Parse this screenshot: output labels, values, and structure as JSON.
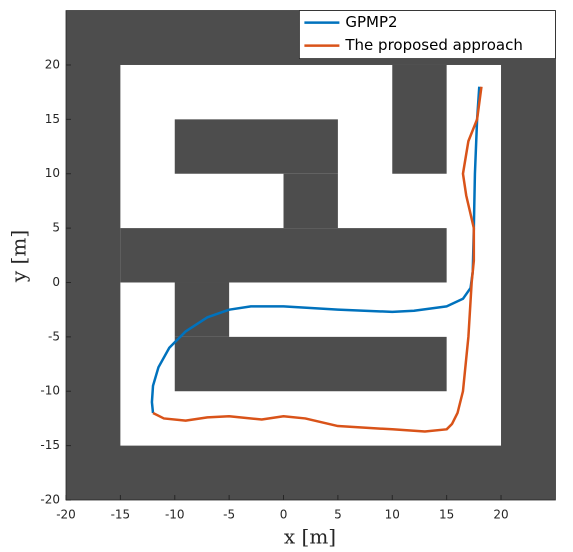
{
  "chart_data": {
    "type": "line",
    "xlabel": "x [m]",
    "ylabel": "y [m]",
    "xlim": [
      -20,
      25
    ],
    "ylim": [
      -20,
      25
    ],
    "xticks": [
      -20,
      -15,
      -10,
      -5,
      0,
      5,
      10,
      15,
      20
    ],
    "yticks": [
      -20,
      -15,
      -10,
      -5,
      0,
      5,
      10,
      15,
      20
    ],
    "legend": "upper right",
    "obstacle_color": "#4d4d4d",
    "free_space": [
      -15,
      -15,
      20,
      20
    ],
    "obstacles": [
      [
        10,
        10,
        15,
        20
      ],
      [
        -10,
        10,
        5,
        15
      ],
      [
        0,
        5,
        5,
        10
      ],
      [
        -15,
        0,
        15,
        5
      ],
      [
        -10,
        -10,
        15,
        -5
      ],
      [
        -10,
        -5,
        -5,
        0
      ]
    ],
    "series": [
      {
        "name": "GPMP2",
        "color": "#0072bd",
        "x": [
          18,
          17.8,
          17.6,
          17.5,
          17.4,
          17.2,
          16.5,
          15,
          12,
          10,
          5,
          0,
          -3,
          -5,
          -7,
          -9,
          -10.5,
          -11.5,
          -12,
          -12.1,
          -12
        ],
        "values": [
          18,
          15,
          10,
          5,
          1,
          -0.5,
          -1.5,
          -2.2,
          -2.6,
          -2.7,
          -2.5,
          -2.2,
          -2.2,
          -2.5,
          -3.2,
          -4.5,
          -6,
          -7.8,
          -9.5,
          -11,
          -12
        ]
      },
      {
        "name": "The proposed approach",
        "color": "#d95319",
        "x": [
          18.2,
          17.8,
          17,
          16.5,
          16.8,
          17.5,
          17.5,
          17.3,
          17,
          16.5,
          16,
          15.5,
          15,
          13,
          10,
          5,
          2,
          0,
          -2,
          -5,
          -7,
          -9,
          -11,
          -12
        ],
        "values": [
          18,
          15,
          13,
          10,
          8,
          5,
          2,
          0,
          -5,
          -10,
          -12,
          -13,
          -13.5,
          -13.7,
          -13.5,
          -13.2,
          -12.5,
          -12.3,
          -12.6,
          -12.3,
          -12.4,
          -12.7,
          -12.5,
          -12
        ]
      }
    ]
  }
}
